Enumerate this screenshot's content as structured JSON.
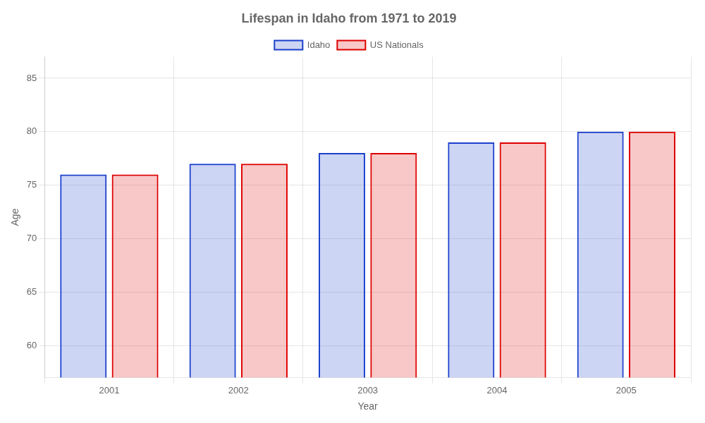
{
  "chart_data": {
    "type": "bar",
    "title": "Lifespan in Idaho from 1971 to 2019",
    "x_label": "Year",
    "y_label": "Age",
    "categories": [
      "2001",
      "2002",
      "2003",
      "2004",
      "2005"
    ],
    "series": [
      {
        "name": "Idaho",
        "color": "#1a3fcc",
        "values": [
          76,
          77,
          78,
          79,
          80
        ]
      },
      {
        "name": "US Nationals",
        "color": "#dd0000",
        "values": [
          76,
          77,
          78,
          79,
          80
        ]
      }
    ],
    "ylim": [
      57,
      87
    ],
    "yticks": [
      60,
      65,
      70,
      75,
      80,
      85
    ],
    "grid": true,
    "legend": "top"
  }
}
